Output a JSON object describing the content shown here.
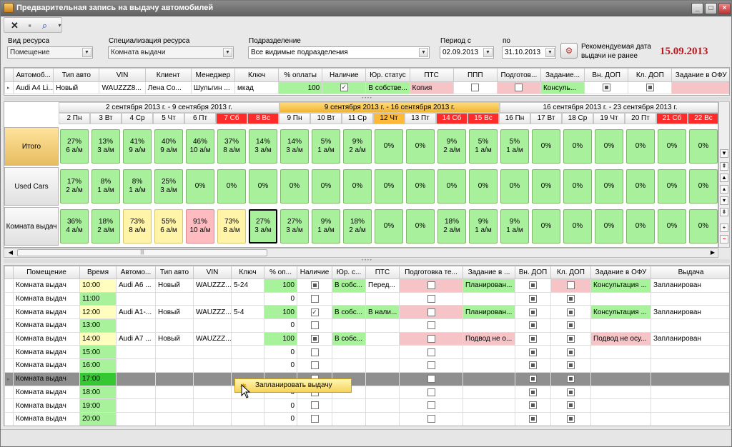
{
  "window": {
    "title": "Предварительная запись на выдачу автомобилей"
  },
  "filters": {
    "resource_type_label": "Вид ресурса",
    "resource_type_value": "Помещение",
    "specialization_label": "Специализация ресурса",
    "specialization_value": "Комната выдачи",
    "division_label": "Подразделение",
    "division_value": "Все видимые подразделения",
    "period_from_label": "Период с",
    "period_from_value": "02.09.2013",
    "period_to_label": "по",
    "period_to_value": "31.10.2013",
    "recommended_label_1": "Рекомендуемая дата",
    "recommended_label_2": "выдачи не ранее",
    "recommended_date": "15.09.2013"
  },
  "order_grid": {
    "columns": [
      "Автомоб...",
      "Тип авто",
      "VIN",
      "Клиент",
      "Менеджер",
      "Ключ",
      "% оплаты",
      "Наличие",
      "Юр. статус",
      "ПТС",
      "ППП",
      "Подготов...",
      "Задание...",
      "Вн. ДОП",
      "Кл. ДОП",
      "Задание в ОФУ"
    ],
    "row": {
      "car": "Audi A4 Li...",
      "type": "Новый",
      "vin": "WAUZZZ8...",
      "client": "Лена Со...",
      "manager": "Шульгин ...",
      "key": "мкад",
      "payment": "100",
      "status": "В собстве...",
      "pts": "Копия",
      "task": "Консуль..."
    }
  },
  "schedule": {
    "weeks": [
      "2 сентября 2013 г. - 9 сентября 2013 г.",
      "9 сентября 2013 г. - 16 сентября 2013 г.",
      "16 сентября 2013 г. - 23 сентября 2013 г."
    ],
    "days": [
      "2 Пн",
      "3 Вт",
      "4 Ср",
      "5 Чт",
      "6 Пт",
      "7 Сб",
      "8 Вс",
      "9 Пн",
      "10 Вт",
      "11 Ср",
      "12 Чт",
      "13 Пт",
      "14 Сб",
      "15 Вс",
      "16 Пн",
      "17 Вт",
      "18 Ср",
      "19 Чт",
      "20 Пт",
      "21 Сб",
      "22 Вс"
    ],
    "rows": [
      {
        "label": "Итого",
        "cells": [
          [
            "27%",
            "6 а/м"
          ],
          [
            "13%",
            "3 а/м"
          ],
          [
            "41%",
            "9 а/м"
          ],
          [
            "40%",
            "9 а/м"
          ],
          [
            "46%",
            "10 а/м"
          ],
          [
            "37%",
            "8 а/м"
          ],
          [
            "14%",
            "3 а/м"
          ],
          [
            "14%",
            "3 а/м"
          ],
          [
            "5%",
            "1 а/м"
          ],
          [
            "9%",
            "2 а/м"
          ],
          [
            "0%",
            ""
          ],
          [
            "0%",
            ""
          ],
          [
            "9%",
            "2 а/м"
          ],
          [
            "5%",
            "1 а/м"
          ],
          [
            "5%",
            "1 а/м"
          ],
          [
            "0%",
            ""
          ],
          [
            "0%",
            ""
          ],
          [
            "0%",
            ""
          ],
          [
            "0%",
            ""
          ],
          [
            "0%",
            ""
          ],
          [
            "0%",
            ""
          ]
        ]
      },
      {
        "label": "Used Cars",
        "cells": [
          [
            "17%",
            "2 а/м"
          ],
          [
            "8%",
            "1 а/м"
          ],
          [
            "8%",
            "1 а/м"
          ],
          [
            "25%",
            "3 а/м"
          ],
          [
            "0%",
            ""
          ],
          [
            "0%",
            ""
          ],
          [
            "0%",
            ""
          ],
          [
            "0%",
            ""
          ],
          [
            "0%",
            ""
          ],
          [
            "0%",
            ""
          ],
          [
            "0%",
            ""
          ],
          [
            "0%",
            ""
          ],
          [
            "0%",
            ""
          ],
          [
            "0%",
            ""
          ],
          [
            "0%",
            ""
          ],
          [
            "0%",
            ""
          ],
          [
            "0%",
            ""
          ],
          [
            "0%",
            ""
          ],
          [
            "0%",
            ""
          ],
          [
            "0%",
            ""
          ],
          [
            "0%",
            ""
          ]
        ]
      },
      {
        "label": "Комната выдач",
        "cells": [
          [
            "36%",
            "4 а/м"
          ],
          [
            "18%",
            "2 а/м"
          ],
          [
            "73%",
            "8 а/м"
          ],
          [
            "55%",
            "6 а/м"
          ],
          [
            "91%",
            "10 а/м"
          ],
          [
            "73%",
            "8 а/м"
          ],
          [
            "27%",
            "3 а/м"
          ],
          [
            "27%",
            "3 а/м"
          ],
          [
            "9%",
            "1 а/м"
          ],
          [
            "18%",
            "2 а/м"
          ],
          [
            "0%",
            ""
          ],
          [
            "0%",
            ""
          ],
          [
            "18%",
            "2 а/м"
          ],
          [
            "9%",
            "1 а/м"
          ],
          [
            "9%",
            "1 а/м"
          ],
          [
            "0%",
            ""
          ],
          [
            "0%",
            ""
          ],
          [
            "0%",
            ""
          ],
          [
            "0%",
            ""
          ],
          [
            "0%",
            ""
          ],
          [
            "0%",
            ""
          ]
        ]
      }
    ]
  },
  "slots_grid": {
    "columns": [
      "Помещение",
      "Время",
      "Автомо...",
      "Тип авто",
      "VIN",
      "Ключ",
      "% оп...",
      "Наличие",
      "Юр. с...",
      "ПТС",
      "Подготовка те...",
      "Задание в ...",
      "Вн. ДОП",
      "Кл. ДОП",
      "Задание в ОФУ",
      "Выдача"
    ],
    "rows": [
      {
        "room": "Комната выдач",
        "time": "10:00",
        "car": "Audi A6 ...",
        "type": "Новый",
        "vin": "WAUZZZ...",
        "key": "5-24",
        "pay": "100",
        "ur": "В собс...",
        "pts": "Перед...",
        "task": "Планирован...",
        "ofu": "Консультация ...",
        "issue": "Запланирован"
      },
      {
        "room": "Комната выдач",
        "time": "11:00",
        "car": "",
        "type": "",
        "vin": "",
        "key": "",
        "pay": "0",
        "ur": "",
        "pts": "",
        "task": "",
        "ofu": "",
        "issue": ""
      },
      {
        "room": "Комната выдач",
        "time": "12:00",
        "car": "Audi A1-...",
        "type": "Новый",
        "vin": "WAUZZZ...",
        "key": "5-4",
        "pay": "100",
        "ur": "В собс...",
        "pts": "В нали...",
        "task": "Планирован...",
        "ofu": "Консультация ...",
        "issue": "Запланирован"
      },
      {
        "room": "Комната выдач",
        "time": "13:00",
        "car": "",
        "type": "",
        "vin": "",
        "key": "",
        "pay": "0",
        "ur": "",
        "pts": "",
        "task": "",
        "ofu": "",
        "issue": ""
      },
      {
        "room": "Комната выдач",
        "time": "14:00",
        "car": "Audi A7 ...",
        "type": "Новый",
        "vin": "WAUZZZ...",
        "key": "",
        "pay": "100",
        "ur": "В собс...",
        "pts": "",
        "task": "Подвод не о...",
        "ofu": "Подвод не осу...",
        "issue": "Запланирован"
      },
      {
        "room": "Комната выдач",
        "time": "15:00",
        "car": "",
        "type": "",
        "vin": "",
        "key": "",
        "pay": "0",
        "ur": "",
        "pts": "",
        "task": "",
        "ofu": "",
        "issue": ""
      },
      {
        "room": "Комната выдач",
        "time": "16:00",
        "car": "",
        "type": "",
        "vin": "",
        "key": "",
        "pay": "0",
        "ur": "",
        "pts": "",
        "task": "",
        "ofu": "",
        "issue": ""
      },
      {
        "room": "Комната выдач",
        "time": "17:00",
        "car": "",
        "type": "",
        "vin": "",
        "key": "",
        "pay": "",
        "ur": "",
        "pts": "",
        "task": "",
        "ofu": "",
        "issue": ""
      },
      {
        "room": "Комната выдач",
        "time": "18:00",
        "car": "",
        "type": "",
        "vin": "",
        "key": "",
        "pay": "0",
        "ur": "",
        "pts": "",
        "task": "",
        "ofu": "",
        "issue": ""
      },
      {
        "room": "Комната выдач",
        "time": "19:00",
        "car": "",
        "type": "",
        "vin": "",
        "key": "",
        "pay": "0",
        "ur": "",
        "pts": "",
        "task": "",
        "ofu": "",
        "issue": ""
      },
      {
        "room": "Комната выдач",
        "time": "20:00",
        "car": "",
        "type": "",
        "vin": "",
        "key": "",
        "pay": "0",
        "ur": "",
        "pts": "",
        "task": "",
        "ofu": "",
        "issue": ""
      }
    ]
  },
  "context_menu": {
    "item": "Запланировать выдачу"
  },
  "colors": {
    "green": "#a7f29a",
    "pink": "#f6c3c6",
    "weekend_red": "#ff2b2b",
    "week_highlight": "#f2b533",
    "date_red": "#c0161c"
  }
}
